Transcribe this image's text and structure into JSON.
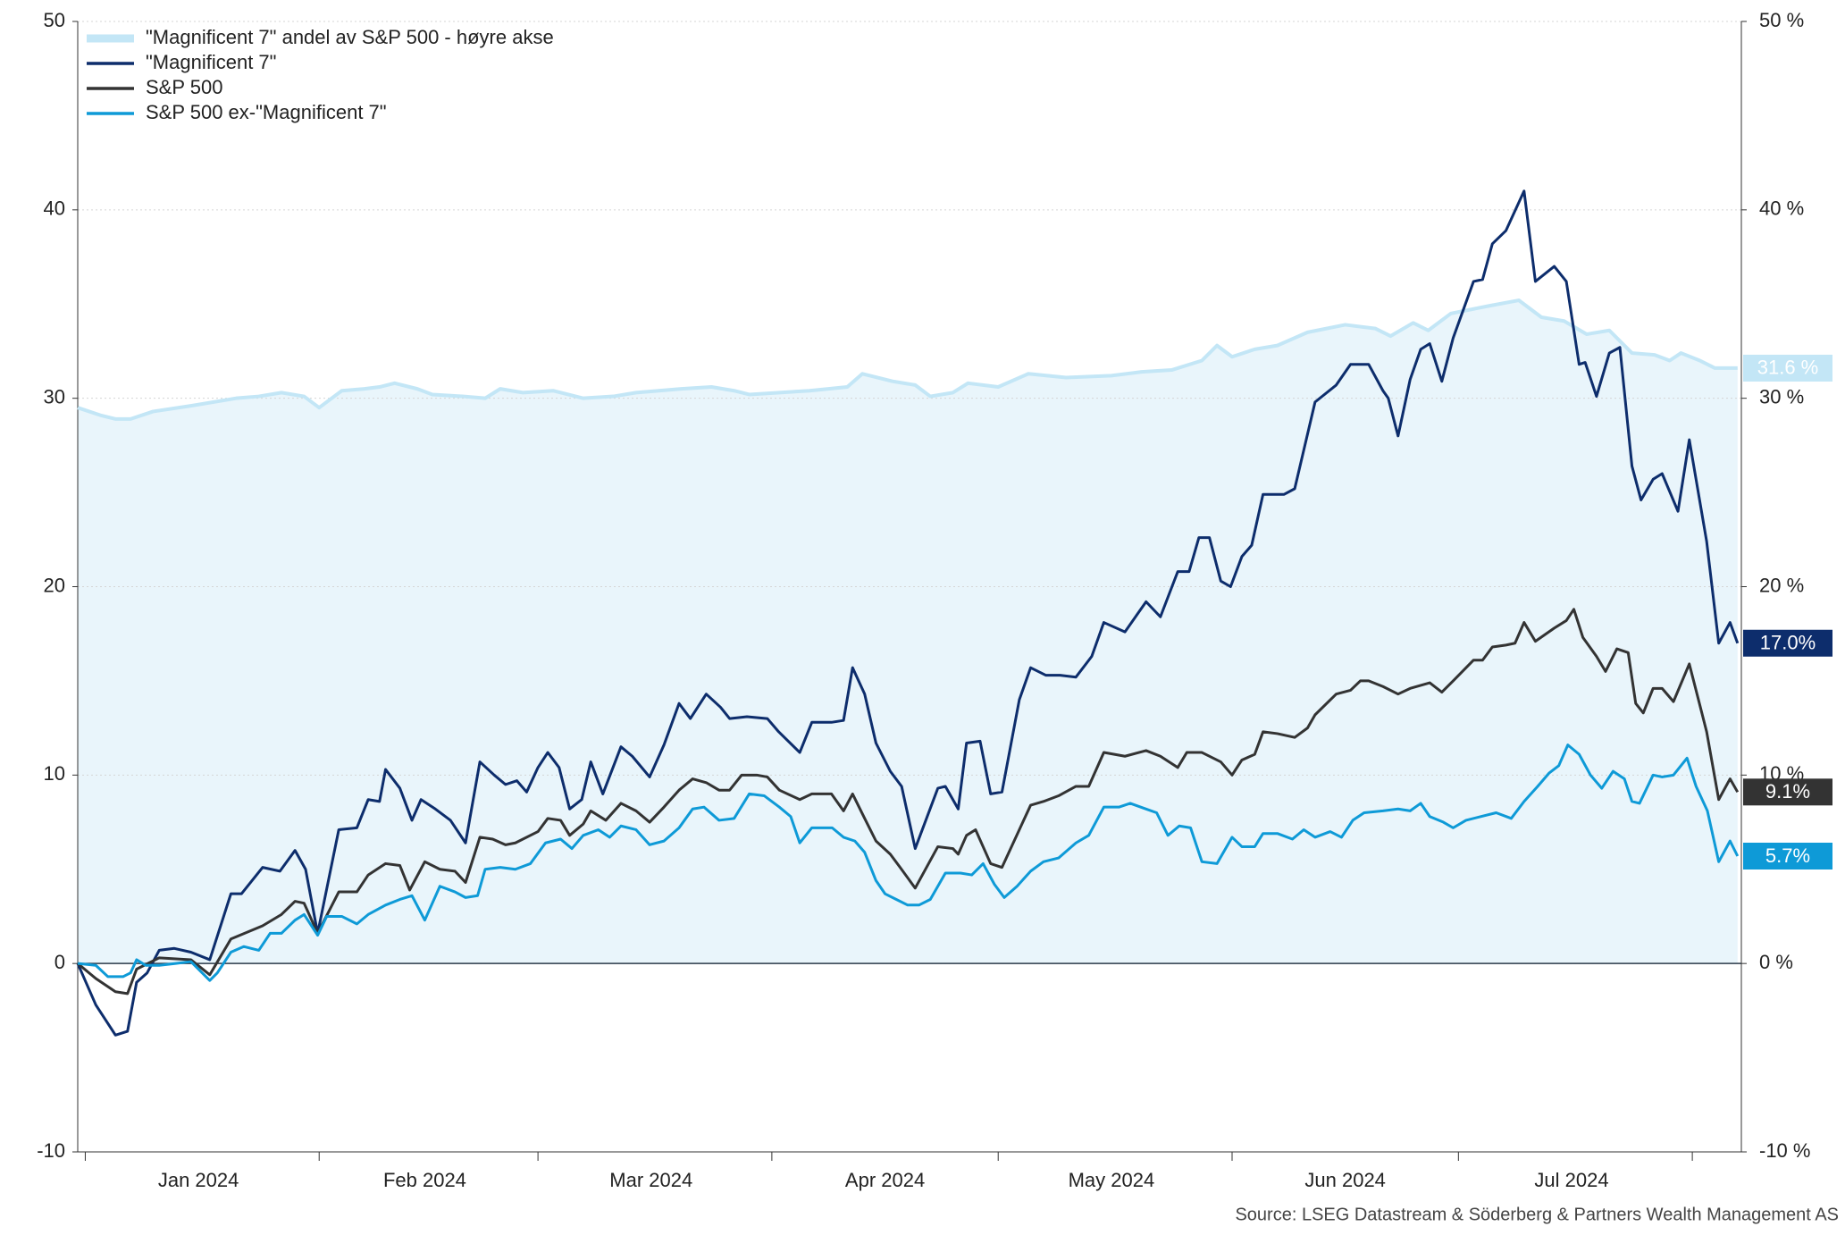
{
  "chart_data": {
    "type": "line",
    "xlim": [
      -1,
      219.5
    ],
    "xticks": [
      {
        "value": 15,
        "label": "Jan 2024"
      },
      {
        "value": 45,
        "label": "Feb 2024"
      },
      {
        "value": 75,
        "label": "Mar 2024"
      },
      {
        "value": 106,
        "label": "Apr 2024"
      },
      {
        "value": 136,
        "label": "May 2024"
      },
      {
        "value": 167,
        "label": "Jun 2024"
      },
      {
        "value": 197,
        "label": "Jul 2024"
      }
    ],
    "xminor_ticks": [
      0,
      31,
      60,
      91,
      121,
      152,
      182,
      213
    ],
    "ylim": [
      -10,
      50
    ],
    "yticks": [
      -10,
      0,
      10,
      20,
      30,
      40,
      50
    ],
    "y2lim": [
      -10,
      50
    ],
    "y2ticks": [
      {
        "value": -10,
        "label": "-10 %"
      },
      {
        "value": 0,
        "label": "0 %"
      },
      {
        "value": 10,
        "label": "10 %"
      },
      {
        "value": 20,
        "label": "20 %"
      },
      {
        "value": 30,
        "label": "30 %"
      },
      {
        "value": 40,
        "label": "40 %"
      },
      {
        "value": 50,
        "label": "50 %"
      }
    ],
    "grid": true,
    "legend": "top-left",
    "source": "Source: LSEG Datastream & Söderberg & Partners Wealth Management AS",
    "series": [
      {
        "name": "\"Magnificent 7\" andel av S&P 500 - høyre akse",
        "color": "#c3e6f6",
        "fill": "#e9f5fb",
        "axis": "y2",
        "end_label": "31.6 %",
        "x": [
          -1,
          2,
          4,
          6,
          9,
          14,
          20,
          23,
          26,
          29,
          31,
          34,
          37,
          39,
          41,
          44,
          46,
          50,
          53,
          55,
          58,
          62,
          66,
          70,
          73,
          76,
          79,
          83,
          86,
          88,
          92,
          96,
          101,
          103,
          107,
          110,
          112,
          115,
          117,
          121,
          125,
          130,
          136,
          140,
          144,
          148,
          150,
          152,
          155,
          158,
          162,
          167,
          171,
          173,
          176,
          178,
          181,
          186,
          190,
          193,
          196,
          199,
          202,
          205,
          208,
          210,
          211.5,
          214,
          216,
          219
        ],
        "values": [
          29.5,
          29.1,
          28.9,
          28.9,
          29.3,
          29.6,
          30,
          30.1,
          30.3,
          30.1,
          29.5,
          30.4,
          30.5,
          30.6,
          30.8,
          30.5,
          30.2,
          30.1,
          30,
          30.5,
          30.3,
          30.4,
          30,
          30.1,
          30.3,
          30.4,
          30.5,
          30.6,
          30.4,
          30.2,
          30.3,
          30.4,
          30.6,
          31.3,
          30.9,
          30.7,
          30.1,
          30.3,
          30.8,
          30.6,
          31.3,
          31.1,
          31.2,
          31.4,
          31.5,
          32,
          32.8,
          32.2,
          32.6,
          32.8,
          33.5,
          33.9,
          33.7,
          33.3,
          34,
          33.6,
          34.5,
          34.9,
          35.2,
          34.3,
          34.1,
          33.4,
          33.6,
          32.4,
          32.3,
          32,
          32.4,
          32,
          31.6,
          31.6
        ]
      },
      {
        "name": "\"Magnificent 7\"",
        "color": "#0d2d6c",
        "end_label": "17.0%",
        "x": [
          -1,
          1.4,
          4,
          5.6,
          6.8,
          8.2,
          9.8,
          11.8,
          14,
          16.5,
          19.3,
          20.7,
          23.5,
          25.8,
          27.8,
          29.2,
          30.8,
          33.6,
          36,
          37.5,
          39,
          39.8,
          41.7,
          43.3,
          44.5,
          46.4,
          48.4,
          50.4,
          52.3,
          54.2,
          55.7,
          57.2,
          58.5,
          60,
          61.3,
          62.8,
          64.2,
          65.8,
          67,
          68.6,
          71,
          72.5,
          74.8,
          76.7,
          78.7,
          80.2,
          82.3,
          84.2,
          85.4,
          87.7,
          90.4,
          91.9,
          94.7,
          96.3,
          98.9,
          100.5,
          101.7,
          103.3,
          104.8,
          106.7,
          108.2,
          110,
          113,
          114,
          115.7,
          116.8,
          118.6,
          120,
          121.5,
          123.8,
          125.3,
          127.3,
          129.2,
          131.3,
          133.4,
          135,
          137.8,
          140.6,
          142.5,
          144.8,
          146.3,
          147.6,
          149,
          150.5,
          151.8,
          153.3,
          154.6,
          156.1,
          158.9,
          160.3,
          163,
          165.8,
          167.7,
          170.1,
          172,
          172.7,
          174,
          175.6,
          177,
          178.2,
          179.8,
          181.3,
          184,
          185.2,
          186.5,
          188.3,
          190.7,
          192.2,
          194.7,
          196.3,
          198,
          198.8,
          200.3,
          202,
          203.4,
          205,
          206.2,
          207.8,
          209,
          211.1,
          212.6,
          214.9,
          216.5,
          218,
          219
        ],
        "values": [
          0,
          -2.2,
          -3.8,
          -3.6,
          -1,
          -0.5,
          0.7,
          0.8,
          0.6,
          0.2,
          3.7,
          3.7,
          5.1,
          4.9,
          6,
          5,
          1.6,
          7.1,
          7.2,
          8.7,
          8.6,
          10.3,
          9.3,
          7.6,
          8.7,
          8.2,
          7.6,
          6.4,
          10.7,
          10,
          9.5,
          9.7,
          9.1,
          10.4,
          11.2,
          10.4,
          8.2,
          8.7,
          10.7,
          9,
          11.5,
          11,
          9.9,
          11.6,
          13.8,
          13,
          14.3,
          13.6,
          13,
          13.1,
          13,
          12.3,
          11.2,
          12.8,
          12.8,
          12.9,
          15.7,
          14.3,
          11.7,
          10.2,
          9.4,
          6.1,
          9.3,
          9.4,
          8.2,
          11.7,
          11.8,
          9,
          9.1,
          14,
          15.7,
          15.3,
          15.3,
          15.2,
          16.3,
          18.1,
          17.6,
          19.2,
          18.4,
          20.8,
          20.8,
          22.6,
          22.6,
          20.3,
          20,
          21.6,
          22.2,
          24.9,
          24.9,
          25.2,
          29.8,
          30.7,
          31.8,
          31.8,
          30.4,
          30,
          28,
          31,
          32.6,
          32.9,
          30.9,
          33.2,
          36.2,
          36.3,
          38.2,
          38.9,
          41,
          36.2,
          37,
          36.2,
          31.8,
          31.9,
          30.1,
          32.4,
          32.7,
          26.4,
          24.6,
          25.7,
          26,
          24,
          27.8,
          22.4,
          17,
          18.1,
          17.0
        ]
      },
      {
        "name": "S&P 500",
        "color": "#333333",
        "end_label": "9.1%",
        "x": [
          -1,
          1.4,
          4,
          5.6,
          6.8,
          9.8,
          14,
          16.5,
          19.3,
          23.5,
          26,
          27.8,
          29,
          30.8,
          33.6,
          36,
          37.5,
          39.8,
          41.7,
          43,
          45,
          47,
          49,
          50.4,
          52.3,
          54,
          55.7,
          57,
          60,
          61.3,
          63,
          64.2,
          66,
          67,
          69,
          71,
          73,
          74.8,
          76.7,
          78.7,
          80.5,
          82.3,
          84,
          85.4,
          87,
          89,
          90.4,
          92,
          94.7,
          96.3,
          98.9,
          100.5,
          101.7,
          103.3,
          104.8,
          106.7,
          108,
          110,
          113,
          115,
          115.7,
          116.8,
          118,
          120,
          121.5,
          123.8,
          125.3,
          127,
          129,
          131.3,
          133,
          135,
          137.8,
          140.6,
          142.5,
          144.8,
          146,
          148,
          150.5,
          152,
          153.3,
          155,
          156.1,
          158,
          160.3,
          162,
          163,
          165.8,
          167.7,
          169,
          170.1,
          172,
          174,
          175.6,
          178.2,
          179.8,
          181.3,
          184,
          185.2,
          186.5,
          188.3,
          189.5,
          190.7,
          192.2,
          194.7,
          196.3,
          197.3,
          198.5,
          200.3,
          201.5,
          203,
          204.5,
          205.5,
          206.5,
          207.8,
          209,
          210.5,
          212.6,
          214.9,
          216.5,
          218,
          219
        ],
        "values": [
          0,
          -0.8,
          -1.5,
          -1.6,
          -0.3,
          0.3,
          0.2,
          -0.6,
          1.3,
          2,
          2.6,
          3.3,
          3.2,
          1.6,
          3.8,
          3.8,
          4.7,
          5.3,
          5.2,
          3.9,
          5.4,
          5,
          4.9,
          4.3,
          6.7,
          6.6,
          6.3,
          6.4,
          7,
          7.7,
          7.6,
          6.8,
          7.4,
          8.1,
          7.6,
          8.5,
          8.1,
          7.5,
          8.3,
          9.2,
          9.8,
          9.6,
          9.2,
          9.2,
          10,
          10,
          9.9,
          9.2,
          8.7,
          9,
          9,
          8.1,
          9,
          7.7,
          6.5,
          5.8,
          5.1,
          4,
          6.2,
          6.1,
          5.8,
          6.8,
          7.1,
          5.3,
          5.1,
          7.1,
          8.4,
          8.6,
          8.9,
          9.4,
          9.4,
          11.2,
          11,
          11.3,
          11,
          10.4,
          11.2,
          11.2,
          10.7,
          10,
          10.8,
          11.1,
          12.3,
          12.2,
          12,
          12.5,
          13.2,
          14.3,
          14.5,
          15,
          15,
          14.7,
          14.3,
          14.6,
          14.9,
          14.4,
          15,
          16.1,
          16.1,
          16.8,
          16.9,
          17,
          18.1,
          17.1,
          17.8,
          18.2,
          18.8,
          17.3,
          16.3,
          15.5,
          16.7,
          16.5,
          13.8,
          13.3,
          14.6,
          14.6,
          13.9,
          15.9,
          12.3,
          8.7,
          9.8,
          9.1
        ]
      },
      {
        "name": "S&P 500 ex-\"Magnificent 7\"",
        "color": "#0e9ad7",
        "end_label": "5.7%",
        "x": [
          -1,
          1.4,
          3,
          5,
          6,
          6.8,
          8,
          9.8,
          12,
          14,
          16.5,
          17.5,
          19.3,
          21,
          23,
          24.5,
          26,
          27.8,
          29,
          30.8,
          32,
          34,
          36,
          37.5,
          39.8,
          41.7,
          43.3,
          45,
          47,
          49,
          50.4,
          52,
          53,
          55,
          57,
          59,
          61,
          63,
          64.5,
          66,
          68,
          69.5,
          71,
          73,
          74.8,
          76.7,
          78.7,
          80.5,
          82,
          84,
          86,
          88,
          90,
          92,
          93.5,
          94.7,
          96.3,
          99,
          100.5,
          102,
          103.3,
          104.8,
          106,
          107.5,
          109,
          110.5,
          112,
          114,
          116,
          117.5,
          119,
          120.5,
          121.8,
          123.5,
          125.3,
          127,
          129,
          131.3,
          133,
          135,
          137,
          138.5,
          140.6,
          142,
          143.5,
          145,
          146.5,
          148,
          150,
          152,
          153.3,
          155,
          156.1,
          158,
          160,
          161.5,
          163,
          165,
          166.5,
          168,
          169.5,
          172,
          174,
          175.6,
          177,
          178.2,
          180,
          181.3,
          183,
          185,
          187,
          189,
          190.7,
          192.5,
          194,
          195.3,
          196.5,
          198,
          199.5,
          201,
          202.5,
          204,
          205,
          206,
          207.8,
          209,
          210.5,
          212.3,
          213.5,
          215,
          216.5,
          218,
          219
        ],
        "values": [
          0,
          -0.1,
          -0.7,
          -0.7,
          -0.5,
          0.2,
          -0.1,
          -0.1,
          0,
          0.1,
          -0.9,
          -0.5,
          0.6,
          0.9,
          0.7,
          1.6,
          1.6,
          2.3,
          2.6,
          1.5,
          2.5,
          2.5,
          2.1,
          2.6,
          3.1,
          3.4,
          3.6,
          2.3,
          4.1,
          3.8,
          3.5,
          3.6,
          5,
          5.1,
          5,
          5.3,
          6.4,
          6.6,
          6.1,
          6.8,
          7.1,
          6.7,
          7.3,
          7.1,
          6.3,
          6.5,
          7.2,
          8.2,
          8.3,
          7.6,
          7.7,
          9,
          8.9,
          8.3,
          7.8,
          6.4,
          7.2,
          7.2,
          6.7,
          6.5,
          5.9,
          4.4,
          3.7,
          3.4,
          3.1,
          3.1,
          3.4,
          4.8,
          4.8,
          4.7,
          5.3,
          4.2,
          3.5,
          4.1,
          4.9,
          5.4,
          5.6,
          6.4,
          6.8,
          8.3,
          8.3,
          8.5,
          8.2,
          8,
          6.8,
          7.3,
          7.2,
          5.4,
          5.3,
          6.7,
          6.2,
          6.2,
          6.9,
          6.9,
          6.6,
          7.1,
          6.7,
          7,
          6.7,
          7.6,
          8,
          8.1,
          8.2,
          8.1,
          8.5,
          7.8,
          7.5,
          7.2,
          7.6,
          7.8,
          8,
          7.7,
          8.6,
          9.4,
          10.1,
          10.5,
          11.6,
          11.1,
          10,
          9.3,
          10.2,
          9.8,
          8.6,
          8.5,
          10,
          9.9,
          10,
          10.9,
          9.4,
          8.1,
          5.4,
          6.5,
          5.7
        ]
      }
    ]
  }
}
